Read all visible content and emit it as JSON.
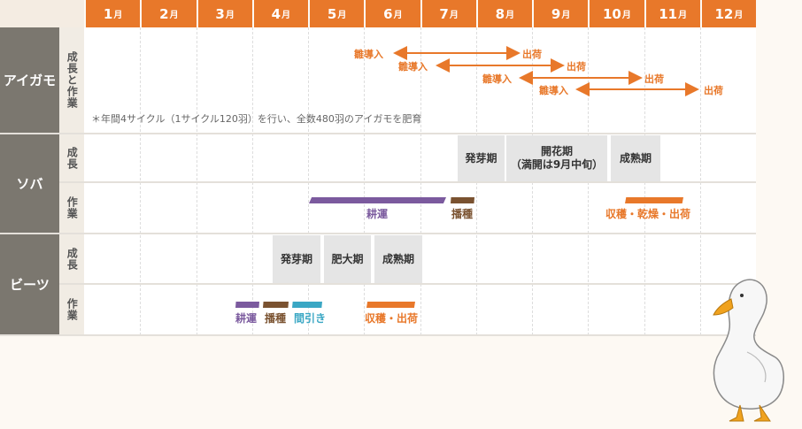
{
  "months": [
    {
      "num": "1",
      "suffix": "月"
    },
    {
      "num": "2",
      "suffix": "月"
    },
    {
      "num": "3",
      "suffix": "月"
    },
    {
      "num": "4",
      "suffix": "月"
    },
    {
      "num": "5",
      "suffix": "月"
    },
    {
      "num": "6",
      "suffix": "月"
    },
    {
      "num": "7",
      "suffix": "月"
    },
    {
      "num": "8",
      "suffix": "月"
    },
    {
      "num": "9",
      "suffix": "月"
    },
    {
      "num": "10",
      "suffix": "月"
    },
    {
      "num": "11",
      "suffix": "月"
    },
    {
      "num": "12",
      "suffix": "月"
    }
  ],
  "aigamo": {
    "label": "アイガモ",
    "sub_label": "成長と作業",
    "note": "＊年間4サイクル（1サイクル120羽）を行い、全数480羽のアイガモを肥育",
    "cycles": [
      {
        "start_label": "雛導入",
        "end_label": "出荷"
      },
      {
        "start_label": "雛導入",
        "end_label": "出荷"
      },
      {
        "start_label": "雛導入",
        "end_label": "出荷"
      },
      {
        "start_label": "雛導入",
        "end_label": "出荷"
      }
    ]
  },
  "soba": {
    "label": "ソバ",
    "growth_label": "成長",
    "work_label": "作業",
    "phases": [
      {
        "label": "発芽期"
      },
      {
        "label": "開花期"
      },
      {
        "label": "（満開は9月中旬）"
      },
      {
        "label": "成熟期"
      }
    ],
    "tasks": [
      {
        "label": "耕運",
        "color": "#7b5a9e"
      },
      {
        "label": "播種",
        "color": "#7a5230"
      },
      {
        "label": "収穫・乾燥・出荷",
        "color": "#e8782a"
      }
    ]
  },
  "beets": {
    "label": "ビーツ",
    "growth_label": "成長",
    "work_label": "作業",
    "phases": [
      {
        "label": "発芽期"
      },
      {
        "label": "肥大期"
      },
      {
        "label": "成熟期"
      }
    ],
    "tasks": [
      {
        "label": "耕運",
        "color": "#7b5a9e"
      },
      {
        "label": "播種",
        "color": "#7a5230"
      },
      {
        "label": "間引き",
        "color": "#3aa7c4"
      },
      {
        "label": "収穫・出荷",
        "color": "#e8782a"
      }
    ]
  },
  "colors": {
    "header": "#e8782a",
    "crop_cell": "#7b776f",
    "accent": "#e8782a"
  }
}
